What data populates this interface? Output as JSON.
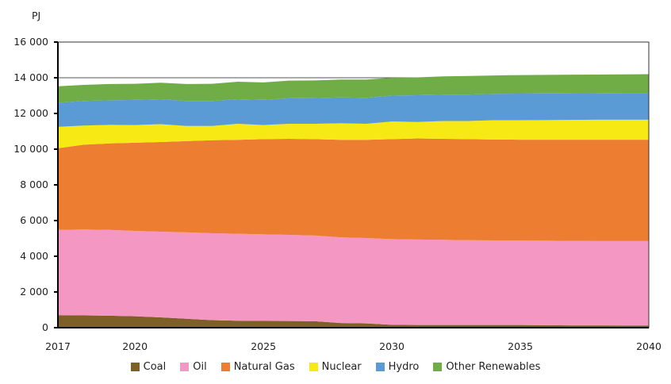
{
  "chart_data": {
    "type": "area",
    "stacked": true,
    "ylabel": "PJ",
    "xlabel": "",
    "ylim": [
      0,
      16000
    ],
    "yticks": [
      0,
      2000,
      4000,
      6000,
      8000,
      10000,
      12000,
      14000,
      16000
    ],
    "ytick_labels": [
      "0",
      "2 000",
      "4 000",
      "6 000",
      "8 000",
      "10 000",
      "12 000",
      "14 000",
      "16 000"
    ],
    "xlim": [
      2017,
      2040
    ],
    "xticks": [
      2017,
      2020,
      2025,
      2030,
      2035,
      2040
    ],
    "xtick_labels": [
      "2017",
      "2020",
      "2025",
      "2030",
      "2035",
      "2040"
    ],
    "grid": "horizontal",
    "legend_position": "bottom",
    "x": [
      2017,
      2018,
      2019,
      2020,
      2021,
      2022,
      2023,
      2024,
      2025,
      2026,
      2027,
      2028,
      2029,
      2030,
      2031,
      2032,
      2033,
      2034,
      2035,
      2036,
      2037,
      2038,
      2039,
      2040
    ],
    "series": [
      {
        "name": "Coal",
        "color": "#7f5f28",
        "values": [
          700,
          690,
          670,
          640,
          580,
          500,
          420,
          390,
          380,
          370,
          360,
          260,
          240,
          160,
          150,
          150,
          150,
          150,
          150,
          140,
          130,
          130,
          120,
          120
        ]
      },
      {
        "name": "Oil",
        "color": "#f497c2",
        "values": [
          4780,
          4810,
          4810,
          4780,
          4800,
          4840,
          4870,
          4870,
          4850,
          4830,
          4800,
          4800,
          4780,
          4800,
          4790,
          4770,
          4750,
          4740,
          4730,
          4730,
          4730,
          4720,
          4730,
          4730
        ]
      },
      {
        "name": "Natural Gas",
        "color": "#ed7d31",
        "values": [
          4570,
          4750,
          4840,
          4940,
          5020,
          5110,
          5210,
          5260,
          5330,
          5380,
          5400,
          5460,
          5500,
          5600,
          5660,
          5660,
          5660,
          5650,
          5650,
          5660,
          5670,
          5680,
          5680,
          5680
        ]
      },
      {
        "name": "Nuclear",
        "color": "#f7ea14",
        "values": [
          1200,
          1070,
          1040,
          990,
          1000,
          850,
          800,
          900,
          790,
          840,
          860,
          930,
          900,
          990,
          920,
          1000,
          1020,
          1080,
          1090,
          1100,
          1110,
          1120,
          1120,
          1120
        ]
      },
      {
        "name": "Hydro",
        "color": "#5b9bd5",
        "values": [
          1350,
          1380,
          1380,
          1410,
          1400,
          1400,
          1400,
          1380,
          1410,
          1430,
          1440,
          1450,
          1460,
          1450,
          1500,
          1470,
          1480,
          1480,
          1490,
          1490,
          1490,
          1490,
          1500,
          1500
        ]
      },
      {
        "name": "Other Renewables",
        "color": "#70ad47",
        "values": [
          920,
          900,
          910,
          900,
          920,
          950,
          960,
          980,
          980,
          990,
          990,
          1000,
          1020,
          1000,
          1000,
          1030,
          1040,
          1030,
          1040,
          1040,
          1040,
          1040,
          1040,
          1050
        ]
      }
    ]
  }
}
